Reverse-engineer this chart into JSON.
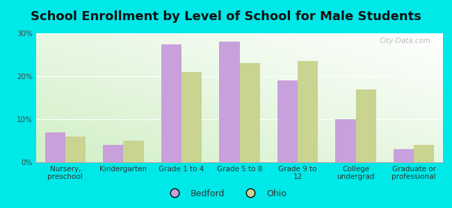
{
  "title": "School Enrollment by Level of School for Male Students",
  "categories": [
    "Nursery,\npreschool",
    "Kindergarten",
    "Grade 1 to 4",
    "Grade 5 to 8",
    "Grade 9 to\n12",
    "College\nundergrad",
    "Graduate or\nprofessional"
  ],
  "bedford_values": [
    7.0,
    4.0,
    27.5,
    28.0,
    19.0,
    10.0,
    3.0
  ],
  "ohio_values": [
    6.0,
    5.0,
    21.0,
    23.0,
    23.5,
    17.0,
    4.0
  ],
  "bedford_color": "#c8a0dc",
  "ohio_color": "#c8d490",
  "background_color": "#00e8e8",
  "ylim": [
    0,
    30
  ],
  "yticks": [
    0,
    10,
    20,
    30
  ],
  "ytick_labels": [
    "0%",
    "10%",
    "20%",
    "30%"
  ],
  "watermark": "City-Data.com",
  "legend_labels": [
    "Bedford",
    "Ohio"
  ],
  "bar_width": 0.35,
  "title_fontsize": 13,
  "tick_fontsize": 7.5,
  "legend_fontsize": 9
}
